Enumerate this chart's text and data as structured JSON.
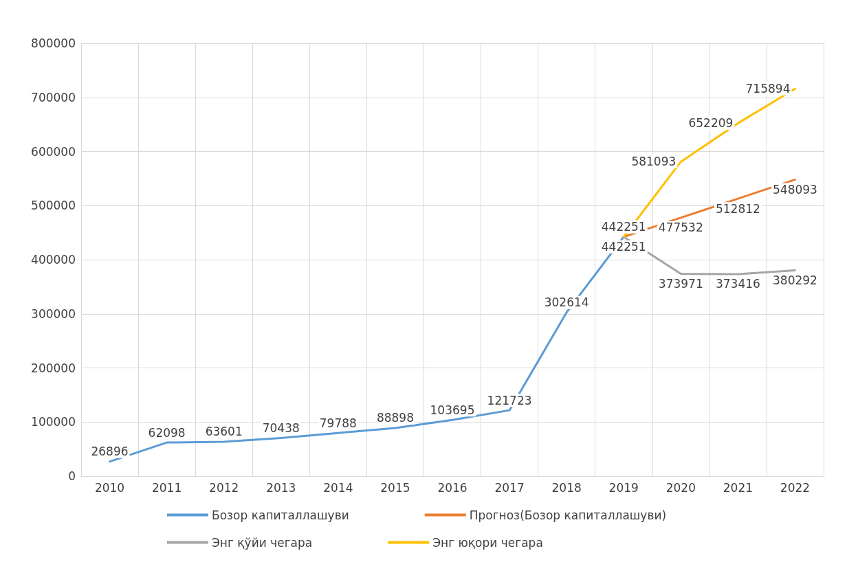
{
  "chart_data": {
    "type": "line",
    "categories": [
      "2010",
      "2011",
      "2012",
      "2013",
      "2014",
      "2015",
      "2016",
      "2017",
      "2018",
      "2019",
      "2020",
      "2021",
      "2022"
    ],
    "series": [
      {
        "name": "Бозор капиталлашуви",
        "color": "#5b9bd5",
        "values": [
          26896,
          62098,
          63601,
          70438,
          79788,
          88898,
          103695,
          121723,
          302614,
          442251,
          null,
          null,
          null
        ],
        "value_labels": [
          "26896",
          "62098",
          "63601",
          "70438",
          "79788",
          "88898",
          "103695",
          "121723",
          "302614",
          "442251",
          null,
          null,
          null
        ]
      },
      {
        "name": "Прогноз(Бозор капиталлашуви)",
        "color": "#ed7d31",
        "values": [
          null,
          null,
          null,
          null,
          null,
          null,
          null,
          null,
          null,
          442251,
          477532,
          512812,
          548093
        ],
        "value_labels": [
          null,
          null,
          null,
          null,
          null,
          null,
          null,
          null,
          null,
          null,
          "477532",
          "512812",
          "548093"
        ]
      },
      {
        "name": "Энг қўйи чегара",
        "color": "#a5a5a5",
        "values": [
          null,
          null,
          null,
          null,
          null,
          null,
          null,
          null,
          null,
          442251,
          373971,
          373416,
          380292
        ],
        "value_labels": [
          null,
          null,
          null,
          null,
          null,
          null,
          null,
          null,
          null,
          "442251",
          "373971",
          "373416",
          "380292"
        ]
      },
      {
        "name": "Энг юқори чегара",
        "color": "#ffc000",
        "values": [
          null,
          null,
          null,
          null,
          null,
          null,
          null,
          null,
          null,
          442251,
          581093,
          652209,
          715894
        ],
        "value_labels": [
          null,
          null,
          null,
          null,
          null,
          null,
          null,
          null,
          null,
          null,
          "581093",
          "652209",
          "715894"
        ]
      }
    ],
    "ylim": [
      0,
      800000
    ],
    "yticks": [
      0,
      100000,
      200000,
      300000,
      400000,
      500000,
      600000,
      700000,
      800000
    ],
    "grid": true,
    "legend": "bottom",
    "marker": "none",
    "line_style": "solid"
  }
}
